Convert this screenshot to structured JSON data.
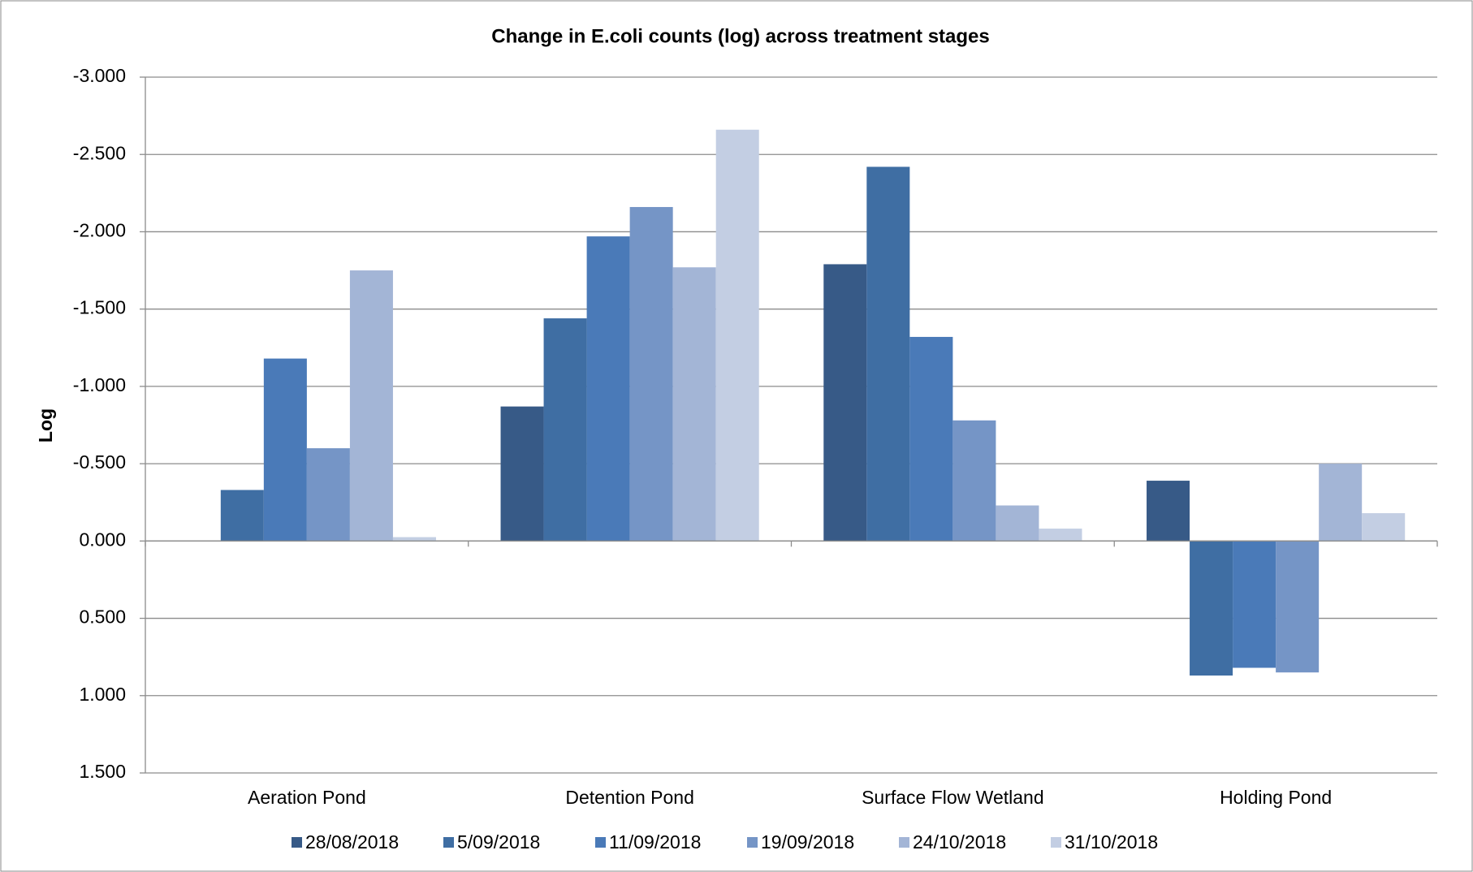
{
  "chart_data": {
    "type": "bar",
    "title": "Change in E.coli counts (log) across treatment stages",
    "y_label": "Log",
    "categories": [
      "Aeration Pond",
      "Detention Pond",
      "Surface Flow Wetland",
      "Holding Pond"
    ],
    "series": [
      {
        "name": "28/08/2018",
        "color": "#375a87",
        "values": [
          null,
          -0.87,
          -1.79,
          -0.39
        ]
      },
      {
        "name": "5/09/2018",
        "color": "#3f6ea3",
        "values": [
          -0.33,
          -1.44,
          -2.42,
          0.87
        ]
      },
      {
        "name": "11/09/2018",
        "color": "#4a7ab8",
        "values": [
          -1.18,
          -1.97,
          -1.32,
          0.82
        ]
      },
      {
        "name": "19/09/2018",
        "color": "#7595c6",
        "values": [
          -0.6,
          -2.16,
          -0.78,
          0.85
        ]
      },
      {
        "name": "24/10/2018",
        "color": "#a3b5d6",
        "values": [
          -1.75,
          -1.77,
          -0.23,
          -0.5
        ]
      },
      {
        "name": "31/10/2018",
        "color": "#c3cee3",
        "values": [
          -0.025,
          -2.66,
          -0.08,
          -0.18
        ]
      }
    ],
    "ylim": [
      -3,
      1.5
    ],
    "y_inverted": true,
    "yticks": [
      {
        "value": -3,
        "label": "-3.000"
      },
      {
        "value": -2.5,
        "label": "-2.500"
      },
      {
        "value": -2,
        "label": "-2.000"
      },
      {
        "value": -1.5,
        "label": "-1.500"
      },
      {
        "value": -1,
        "label": "-1.000"
      },
      {
        "value": -0.5,
        "label": "-0.500"
      },
      {
        "value": 0,
        "label": "0.000"
      },
      {
        "value": 0.5,
        "label": "0.500"
      },
      {
        "value": 1,
        "label": "1.000"
      },
      {
        "value": 1.5,
        "label": "1.500"
      }
    ],
    "grid": true,
    "legend": "bottom"
  }
}
